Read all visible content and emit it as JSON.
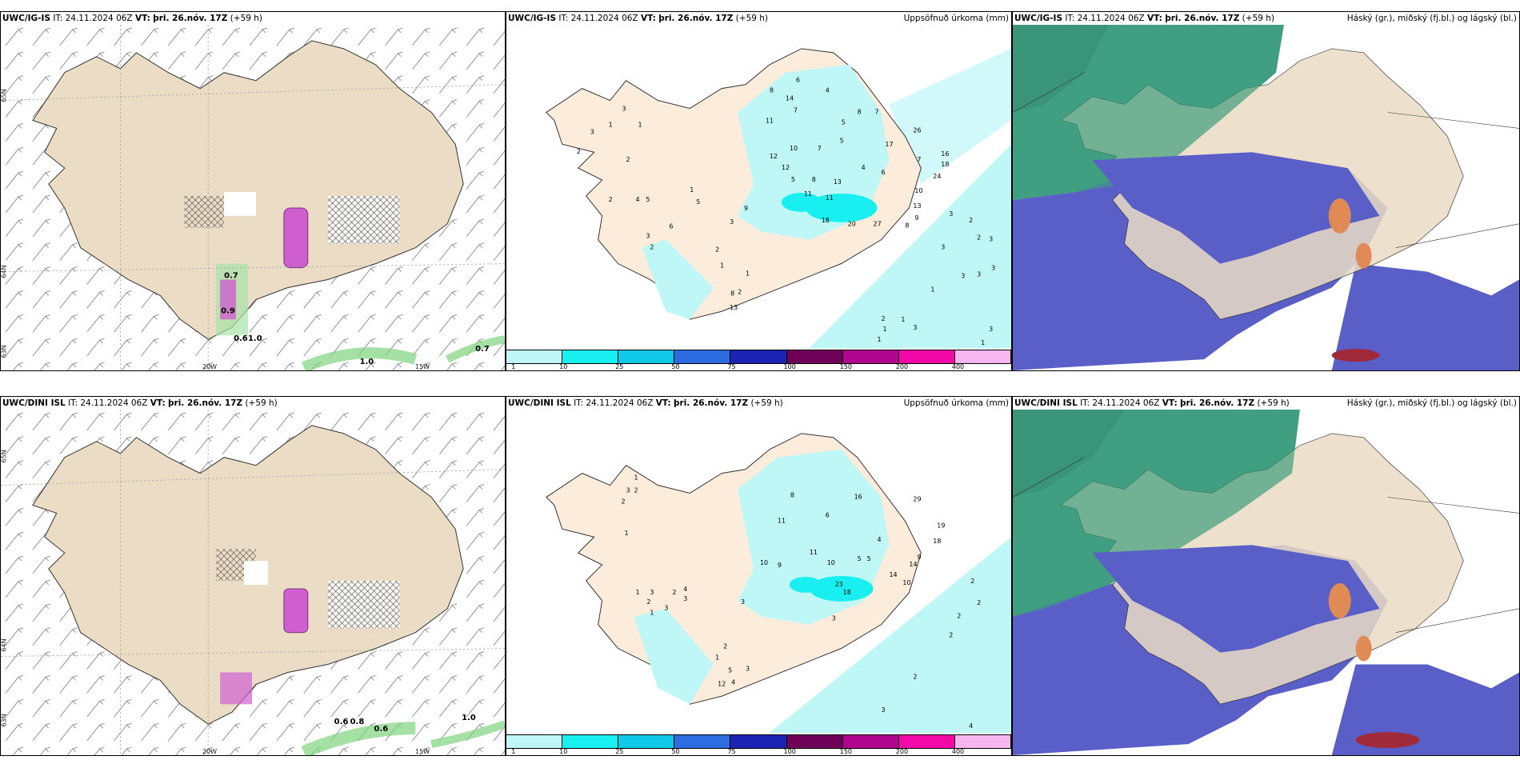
{
  "rows": [
    {
      "model": "UWC/IG-IS",
      "it_label": "IT:",
      "it_value": "24.11.2024 06Z",
      "vt_label": "VT:",
      "vt_value": "þri. 26.nóv. 17Z",
      "lead": "(+59 h)",
      "panels": {
        "wind": {
          "annotations": [
            "0.7",
            "0.9",
            "0.6",
            "1.0",
            "1.0",
            "0.7"
          ],
          "lon_labels": [
            "20W",
            "15W"
          ],
          "lat_labels": [
            "65N",
            "64N",
            "63N"
          ]
        },
        "precip": {
          "title_right": "Uppsöfnuð úrkoma (mm)",
          "values": [
            "2",
            "3",
            "3",
            "1",
            "1",
            "2",
            "4",
            "5",
            "2",
            "3",
            "2",
            "6",
            "5",
            "9",
            "2",
            "1",
            "1",
            "3",
            "1",
            "2",
            "8",
            "13",
            "11",
            "5",
            "6",
            "8",
            "14",
            "4",
            "11",
            "10",
            "12",
            "12",
            "7",
            "7",
            "5",
            "8",
            "13",
            "11",
            "18",
            "20",
            "27",
            "5",
            "8",
            "7",
            "17",
            "26",
            "6",
            "7",
            "4",
            "10",
            "16",
            "18",
            "24",
            "9",
            "13",
            "8",
            "3",
            "3",
            "2",
            "2",
            "3",
            "3",
            "3",
            "3",
            "1",
            "2",
            "1",
            "1",
            "3",
            "1",
            "3",
            "1"
          ]
        },
        "cloud": {
          "title_right": "Háský (gr.), miðský (fj.bl.) og lágský (bl.)"
        }
      }
    },
    {
      "model": "UWC/DINI ISL",
      "it_label": "IT:",
      "it_value": "24.11.2024 06Z",
      "vt_label": "VT:",
      "vt_value": "þri. 26.nóv. 17Z",
      "lead": "(+59 h)",
      "panels": {
        "wind": {
          "annotations": [
            "0.6",
            "0.8",
            "0.6",
            "1.0"
          ],
          "lon_labels": [
            "20W",
            "15W"
          ],
          "lat_labels": [
            "65N",
            "64N",
            "63N"
          ]
        },
        "precip": {
          "title_right": "Uppsöfnuð úrkoma (mm)",
          "values": [
            "1",
            "3",
            "2",
            "2",
            "1",
            "1",
            "3",
            "3",
            "2",
            "4",
            "3",
            "1",
            "2",
            "2",
            "1",
            "5",
            "4",
            "3",
            "12",
            "10",
            "3",
            "9",
            "8",
            "6",
            "11",
            "10",
            "11",
            "16",
            "29",
            "23",
            "18",
            "3",
            "5",
            "5",
            "4",
            "14",
            "10",
            "14",
            "9",
            "19",
            "18",
            "2",
            "2",
            "2",
            "2",
            "2",
            "3",
            "4"
          ]
        },
        "cloud": {
          "title_right": "Háský (gr.), miðský (fj.bl.) og lágský (bl.)"
        }
      }
    }
  ],
  "colorbar": {
    "colors": [
      "#bff7f7",
      "#19eef0",
      "#10c8e8",
      "#2d6be0",
      "#1a23b4",
      "#6e0057",
      "#b0058d",
      "#f20aa8",
      "#f7b6f0"
    ],
    "labels": [
      "1",
      "10",
      "25",
      "50",
      "75",
      "100",
      "150",
      "200",
      "400"
    ]
  },
  "colors": {
    "land": "#ebdcc6",
    "precip_land": "#fcecdc",
    "light_cyan": "#bff7f7",
    "cyan": "#19eef0",
    "low_cloud": "#5a5fc8",
    "mid_cloud": "#3f9f80",
    "high_cloud": "#9ee1b0"
  }
}
